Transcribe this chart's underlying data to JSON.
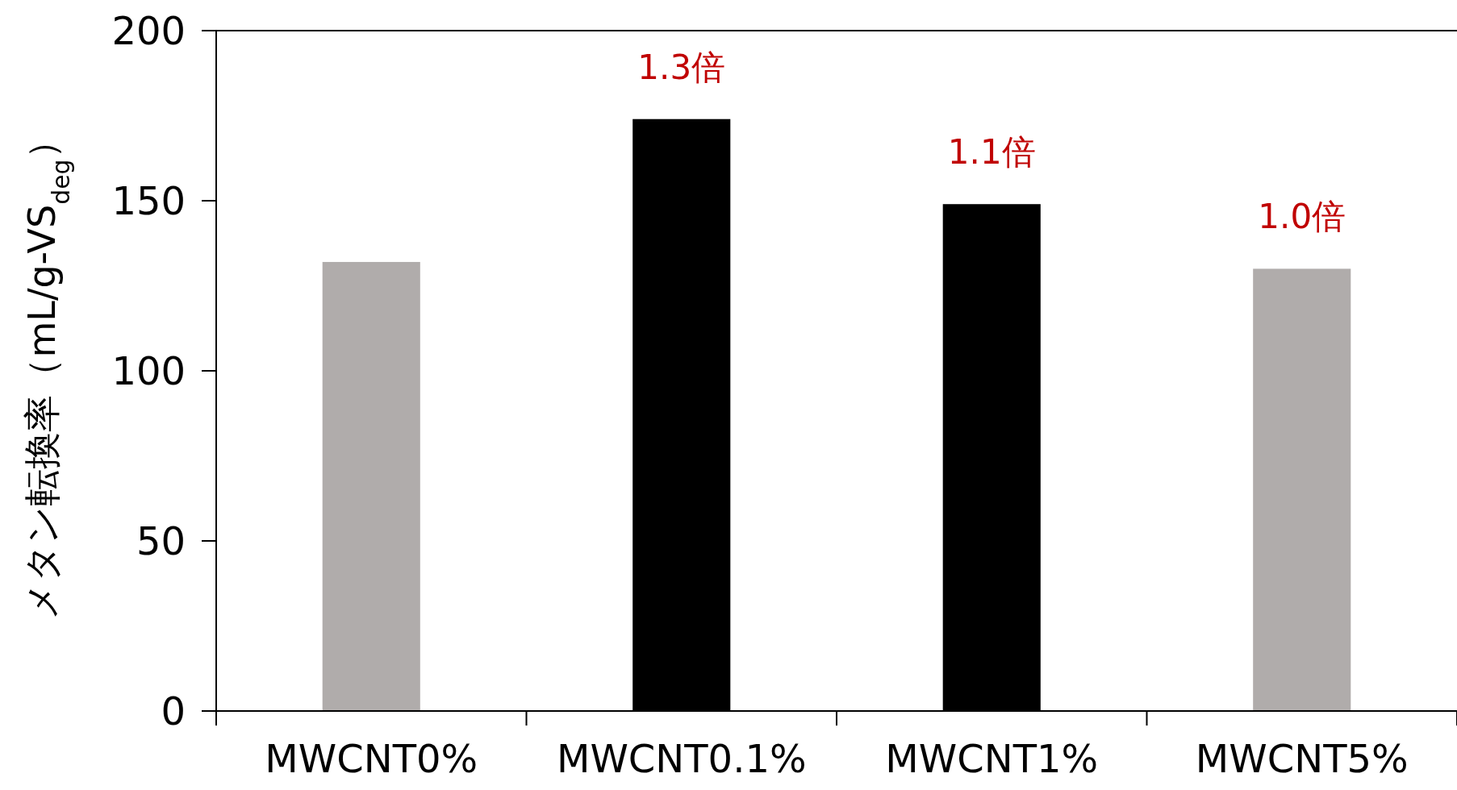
{
  "chart_data": {
    "type": "bar",
    "ylabel": "メタン転換率（mL/g-VS$_{deg}$）",
    "categories": [
      "MWCNT0%",
      "MWCNT0.1%",
      "MWCNT1%",
      "MWCNT5%"
    ],
    "values": [
      132,
      174,
      149,
      130
    ],
    "colors": [
      "#b0acab",
      "#000000",
      "#000000",
      "#b0acab"
    ],
    "ylim": [
      0,
      200
    ],
    "yticks": [
      0,
      50,
      100,
      150,
      200
    ],
    "annotations": [
      {
        "text": "1.3倍",
        "x": "MWCNT0.1%",
        "y": 174
      },
      {
        "text": "1.1倍",
        "x": "MWCNT1%",
        "y": 149
      },
      {
        "text": "1.0倍",
        "x": "MWCNT5%",
        "y": 130
      }
    ]
  }
}
